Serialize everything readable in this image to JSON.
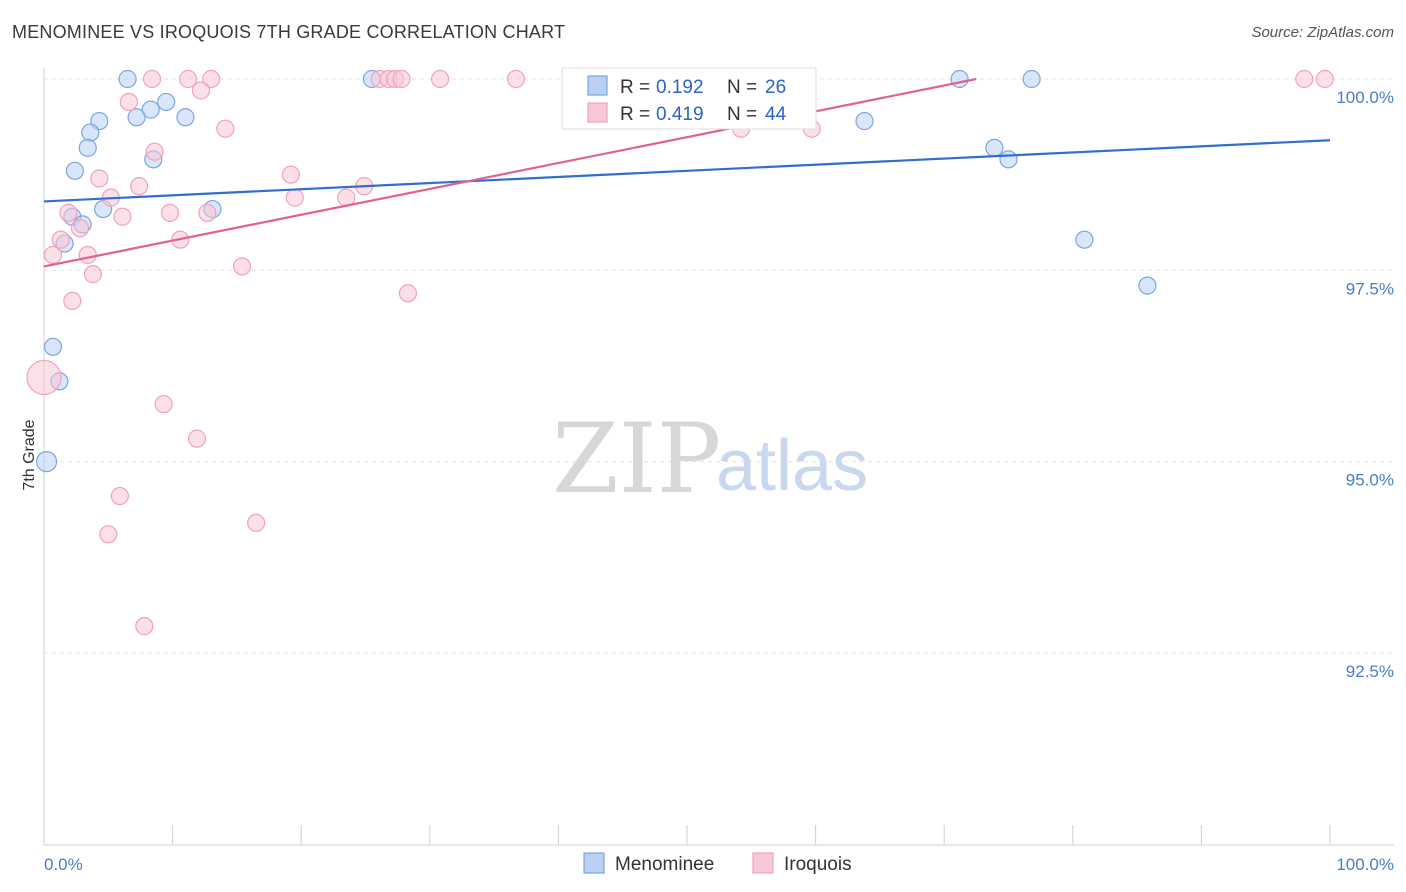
{
  "chart_data": {
    "type": "scatter",
    "title": "MENOMINEE VS IROQUOIS 7TH GRADE CORRELATION CHART",
    "source": "Source: ZipAtlas.com",
    "xlabel": "",
    "ylabel": "7th Grade",
    "xlim": [
      0,
      100
    ],
    "ylim": [
      90.2,
      100.2
    ],
    "x_tick_labels": [
      "0.0%",
      "100.0%"
    ],
    "y_ticks": [
      {
        "value": 100.0,
        "label": "100.0%"
      },
      {
        "value": 97.5,
        "label": "97.5%"
      },
      {
        "value": 95.0,
        "label": "95.0%"
      },
      {
        "value": 92.5,
        "label": "92.5%"
      }
    ],
    "grid": true,
    "watermark": {
      "part1": "ZIP",
      "part2": "atlas"
    },
    "legend": {
      "position": "top-center",
      "r_label": "R =",
      "n_label": "N ="
    },
    "series": [
      {
        "name": "Menominee",
        "color": "#7aa6e0",
        "fill": "#b9d0f2",
        "line_color": "#2f6fcf",
        "r": "0.192",
        "n": "26",
        "trend": {
          "x0": 0,
          "y0": 98.4,
          "x1": 100,
          "y1": 99.2
        },
        "points": [
          {
            "x": 6.5,
            "y": 100.0
          },
          {
            "x": 25.5,
            "y": 100.0
          },
          {
            "x": 71.2,
            "y": 100.0
          },
          {
            "x": 76.8,
            "y": 100.0
          },
          {
            "x": 9.5,
            "y": 99.7
          },
          {
            "x": 8.3,
            "y": 99.6
          },
          {
            "x": 7.2,
            "y": 99.5
          },
          {
            "x": 11.0,
            "y": 99.5
          },
          {
            "x": 4.3,
            "y": 99.45
          },
          {
            "x": 3.6,
            "y": 99.3
          },
          {
            "x": 3.4,
            "y": 99.1
          },
          {
            "x": 8.5,
            "y": 98.95
          },
          {
            "x": 2.4,
            "y": 98.8
          },
          {
            "x": 63.8,
            "y": 99.45
          },
          {
            "x": 73.9,
            "y": 99.1
          },
          {
            "x": 75.0,
            "y": 98.95
          },
          {
            "x": 4.6,
            "y": 98.3
          },
          {
            "x": 13.1,
            "y": 98.3
          },
          {
            "x": 2.2,
            "y": 98.2
          },
          {
            "x": 3.0,
            "y": 98.1
          },
          {
            "x": 1.6,
            "y": 97.85
          },
          {
            "x": 80.9,
            "y": 97.9
          },
          {
            "x": 85.8,
            "y": 97.3
          },
          {
            "x": 0.7,
            "y": 96.5
          },
          {
            "x": 1.2,
            "y": 96.05
          },
          {
            "x": 0.2,
            "y": 95.0
          }
        ]
      },
      {
        "name": "Iroquois",
        "color": "#f2a2bb",
        "fill": "#f8c7d6",
        "line_color": "#e0628d",
        "r": "0.419",
        "n": "44",
        "trend": {
          "x0": 0,
          "y0": 97.55,
          "x1": 72.5,
          "y1": 100.0
        },
        "points": [
          {
            "x": 8.4,
            "y": 100.0
          },
          {
            "x": 11.2,
            "y": 100.0
          },
          {
            "x": 13.0,
            "y": 100.0
          },
          {
            "x": 26.1,
            "y": 100.0
          },
          {
            "x": 26.8,
            "y": 100.0
          },
          {
            "x": 27.3,
            "y": 100.0
          },
          {
            "x": 27.8,
            "y": 100.0
          },
          {
            "x": 30.8,
            "y": 100.0
          },
          {
            "x": 36.7,
            "y": 100.0
          },
          {
            "x": 98.0,
            "y": 100.0
          },
          {
            "x": 99.6,
            "y": 100.0
          },
          {
            "x": 12.2,
            "y": 99.85
          },
          {
            "x": 6.6,
            "y": 99.7
          },
          {
            "x": 14.1,
            "y": 99.35
          },
          {
            "x": 59.7,
            "y": 99.35
          },
          {
            "x": 8.6,
            "y": 99.05
          },
          {
            "x": 19.2,
            "y": 98.75
          },
          {
            "x": 4.3,
            "y": 98.7
          },
          {
            "x": 7.4,
            "y": 98.6
          },
          {
            "x": 24.9,
            "y": 98.6
          },
          {
            "x": 5.2,
            "y": 98.45
          },
          {
            "x": 19.5,
            "y": 98.45
          },
          {
            "x": 23.5,
            "y": 98.45
          },
          {
            "x": 1.9,
            "y": 98.25
          },
          {
            "x": 9.8,
            "y": 98.25
          },
          {
            "x": 12.7,
            "y": 98.25
          },
          {
            "x": 6.1,
            "y": 98.2
          },
          {
            "x": 2.8,
            "y": 98.05
          },
          {
            "x": 1.3,
            "y": 97.9
          },
          {
            "x": 10.6,
            "y": 97.9
          },
          {
            "x": 0.7,
            "y": 97.7
          },
          {
            "x": 3.4,
            "y": 97.7
          },
          {
            "x": 15.4,
            "y": 97.55
          },
          {
            "x": 3.8,
            "y": 97.45
          },
          {
            "x": 2.2,
            "y": 97.1
          },
          {
            "x": 28.3,
            "y": 97.2
          },
          {
            "x": 0.0,
            "y": 96.1
          },
          {
            "x": 9.3,
            "y": 95.75
          },
          {
            "x": 11.9,
            "y": 95.3
          },
          {
            "x": 5.9,
            "y": 94.55
          },
          {
            "x": 16.5,
            "y": 94.2
          },
          {
            "x": 5.0,
            "y": 94.05
          },
          {
            "x": 7.8,
            "y": 92.85
          },
          {
            "x": 54.2,
            "y": 99.35
          }
        ]
      }
    ]
  }
}
